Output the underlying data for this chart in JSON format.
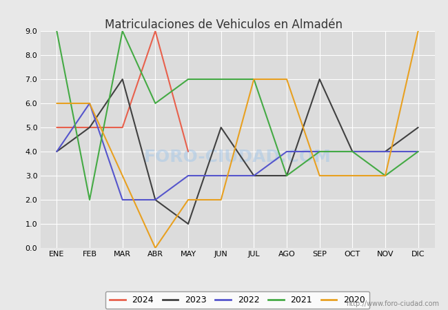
{
  "title": "Matriculaciones de Vehiculos en Almadén",
  "months": [
    "ENE",
    "FEB",
    "MAR",
    "ABR",
    "MAY",
    "JUN",
    "JUL",
    "AGO",
    "SEP",
    "OCT",
    "NOV",
    "DIC"
  ],
  "ylim": [
    0.0,
    9.0
  ],
  "yticks": [
    0.0,
    1.0,
    2.0,
    3.0,
    4.0,
    5.0,
    6.0,
    7.0,
    8.0,
    9.0
  ],
  "series": {
    "2024": {
      "color": "#e8604c",
      "data": [
        5,
        5,
        5,
        9,
        4,
        null,
        null,
        null,
        null,
        null,
        null,
        null
      ]
    },
    "2023": {
      "color": "#404040",
      "data": [
        4,
        5,
        7,
        2,
        1,
        5,
        3,
        3,
        7,
        4,
        4,
        5
      ]
    },
    "2022": {
      "color": "#5555cc",
      "data": [
        4,
        6,
        2,
        2,
        3,
        3,
        3,
        4,
        4,
        4,
        4,
        4
      ]
    },
    "2021": {
      "color": "#44aa44",
      "data": [
        9,
        2,
        9,
        6,
        7,
        7,
        7,
        3,
        4,
        4,
        3,
        4
      ]
    },
    "2020": {
      "color": "#e8a020",
      "data": [
        6,
        6,
        3,
        0,
        2,
        2,
        7,
        7,
        3,
        3,
        3,
        9
      ]
    }
  },
  "legend_order": [
    "2024",
    "2023",
    "2022",
    "2021",
    "2020"
  ],
  "watermark": "FORO-CIUDAD.COM",
  "url": "http://www.foro-ciudad.com",
  "fig_bg_color": "#e8e8e8",
  "plot_bg_color": "#dcdcdc",
  "grid_color": "#ffffff",
  "title_color": "#333333",
  "title_fontsize": 12,
  "tick_fontsize": 8,
  "url_fontsize": 7,
  "linewidth": 1.5
}
